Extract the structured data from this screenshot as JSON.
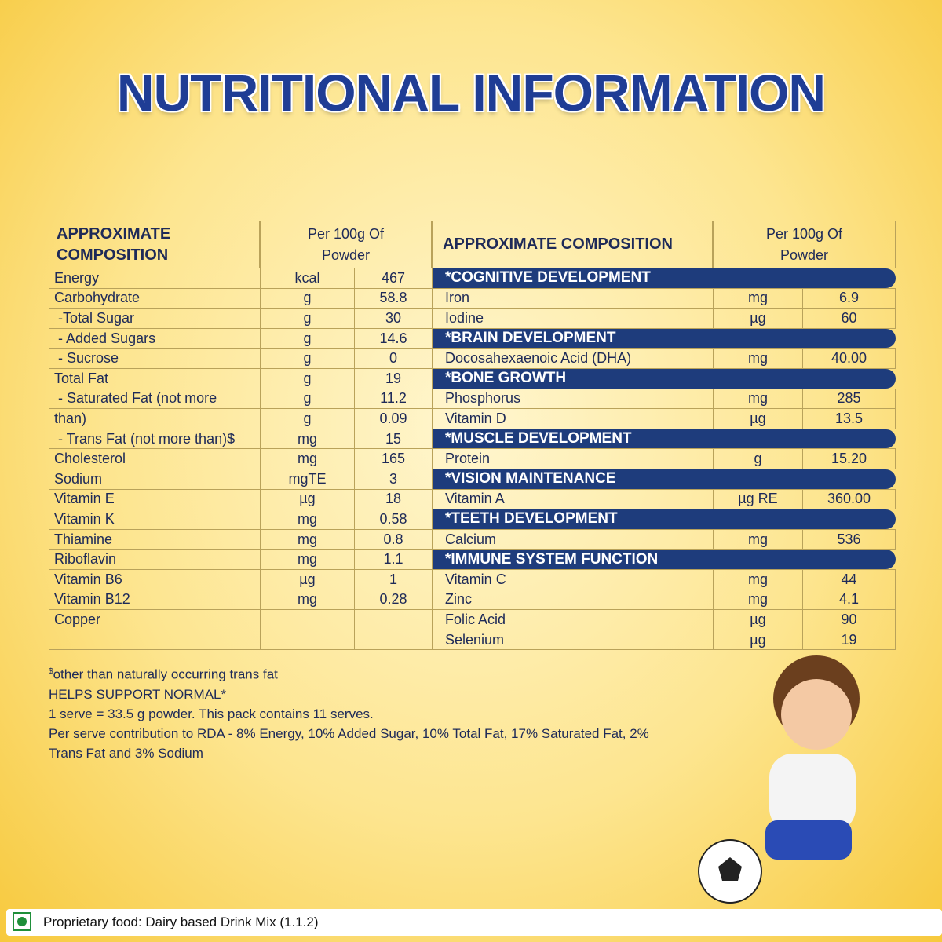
{
  "title": "NUTRITIONAL INFORMATION",
  "left_table": {
    "headers": [
      "APPROXIMATE COMPOSITION",
      "Per 100g Of Powder"
    ],
    "rows": [
      [
        "Energy",
        "kcal",
        "467"
      ],
      [
        "Carbohydrate",
        "g",
        "58.8"
      ],
      [
        " -Total Sugar",
        "g",
        "30"
      ],
      [
        " - Added Sugars",
        "g",
        "14.6"
      ],
      [
        " - Sucrose",
        "g",
        "0"
      ],
      [
        "Total Fat",
        "g",
        "19"
      ],
      [
        " - Saturated Fat (not more",
        "g",
        "11.2"
      ],
      [
        "than)",
        "g",
        "0.09"
      ],
      [
        " - Trans Fat (not more than)$",
        "mg",
        "15"
      ],
      [
        "Cholesterol",
        "mg",
        "165"
      ],
      [
        "Sodium",
        "mgTE",
        "3"
      ],
      [
        "Vitamin E",
        "µg",
        "18"
      ],
      [
        "Vitamin K",
        "mg",
        "0.58"
      ],
      [
        "Thiamine",
        "mg",
        "0.8"
      ],
      [
        "Riboflavin",
        "mg",
        "1.1"
      ],
      [
        "Vitamin B6",
        "µg",
        "1"
      ],
      [
        "Vitamin B12",
        "mg",
        "0.28"
      ],
      [
        "Copper",
        null,
        null
      ]
    ]
  },
  "right_table": {
    "headers": [
      "APPROXIMATE COMPOSITION",
      "Per 100g Of Powder"
    ],
    "sections": [
      {
        "heading": "*COGNITIVE DEVELOPMENT",
        "rows": [
          [
            "Iron",
            "mg",
            "6.9"
          ],
          [
            "Iodine",
            "µg",
            "60"
          ]
        ]
      },
      {
        "heading": "*BRAIN DEVELOPMENT",
        "rows": [
          [
            "Docosahexaenoic Acid (DHA)",
            "mg",
            "40.00"
          ]
        ]
      },
      {
        "heading": "*BONE GROWTH",
        "rows": [
          [
            "Phosphorus",
            "mg",
            "285"
          ],
          [
            "Vitamin D",
            "µg",
            "13.5"
          ]
        ]
      },
      {
        "heading": "*MUSCLE DEVELOPMENT",
        "rows": [
          [
            "Protein",
            "g",
            "15.20"
          ]
        ]
      },
      {
        "heading": "*VISION MAINTENANCE",
        "rows": [
          [
            "Vitamin A",
            "µg RE",
            "360.00"
          ]
        ]
      },
      {
        "heading": "*TEETH DEVELOPMENT",
        "rows": [
          [
            "Calcium",
            "mg",
            "536"
          ]
        ]
      },
      {
        "heading": "*IMMUNE SYSTEM FUNCTION",
        "rows": [
          [
            "Vitamin C",
            "mg",
            "44"
          ],
          [
            "Zinc",
            "mg",
            "4.1"
          ],
          [
            "Folic Acid",
            "µg",
            "90"
          ],
          [
            "Selenium",
            "µg",
            "19"
          ]
        ]
      }
    ]
  },
  "notes": {
    "footnote_mark": "$",
    "footnote": "other than naturally occurring trans fat",
    "lines": [
      "HELPS SUPPORT NORMAL*",
      "1 serve = 33.5 g powder. This pack contains 11 serves.",
      "Per serve contribution to RDA - 8% Energy, 10% Added Sugar, 10% Total Fat, 17% Saturated Fat, 2% Trans Fat and 3% Sodium"
    ]
  },
  "footer": "Proprietary food: Dairy based Drink Mix (1.1.2)"
}
